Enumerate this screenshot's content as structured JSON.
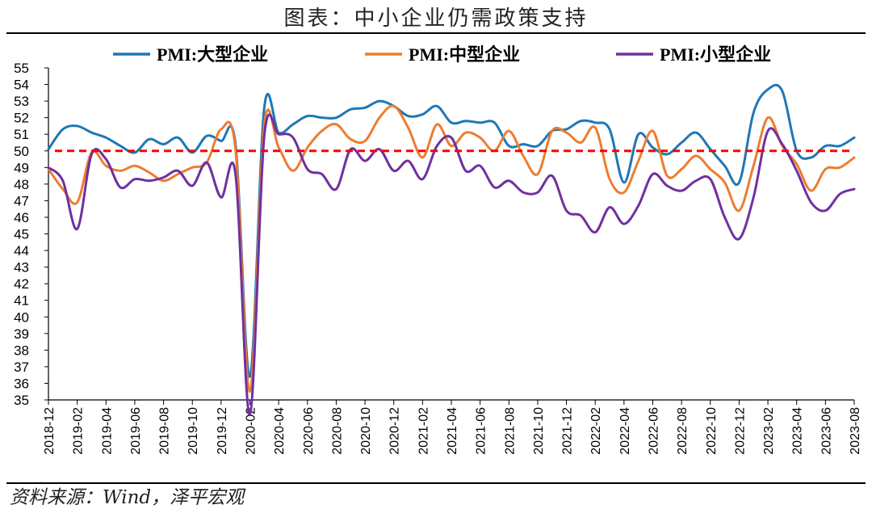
{
  "title": "图表：中小企业仍需政策支持",
  "source": "资料来源：Wind，泽平宏观",
  "chart_data": {
    "type": "line",
    "ylim": [
      35,
      55
    ],
    "yticks": [
      35,
      36,
      37,
      38,
      39,
      40,
      41,
      42,
      43,
      44,
      45,
      46,
      47,
      48,
      49,
      50,
      51,
      52,
      53,
      54,
      55
    ],
    "x": [
      "2018-12",
      "2019-01",
      "2019-02",
      "2019-03",
      "2019-04",
      "2019-05",
      "2019-06",
      "2019-07",
      "2019-08",
      "2019-09",
      "2019-10",
      "2019-11",
      "2019-12",
      "2020-01",
      "2020-02",
      "2020-03",
      "2020-04",
      "2020-05",
      "2020-06",
      "2020-07",
      "2020-08",
      "2020-09",
      "2020-10",
      "2020-11",
      "2020-12",
      "2021-01",
      "2021-02",
      "2021-03",
      "2021-04",
      "2021-05",
      "2021-06",
      "2021-07",
      "2021-08",
      "2021-09",
      "2021-10",
      "2021-11",
      "2021-12",
      "2022-01",
      "2022-02",
      "2022-03",
      "2022-04",
      "2022-05",
      "2022-06",
      "2022-07",
      "2022-08",
      "2022-09",
      "2022-10",
      "2022-11",
      "2022-12",
      "2023-01",
      "2023-02",
      "2023-03",
      "2023-04",
      "2023-05",
      "2023-06",
      "2023-07",
      "2023-08"
    ],
    "xticklabels": [
      "2018-12",
      "2019-02",
      "2019-04",
      "2019-06",
      "2019-08",
      "2019-10",
      "2019-12",
      "2020-02",
      "2020-04",
      "2020-06",
      "2020-08",
      "2020-10",
      "2020-12",
      "2021-02",
      "2021-04",
      "2021-06",
      "2021-08",
      "2021-10",
      "2021-12",
      "2022-02",
      "2022-04",
      "2022-06",
      "2022-08",
      "2022-10",
      "2022-12",
      "2023-02",
      "2023-04",
      "2023-06",
      "2023-08"
    ],
    "reference_line": {
      "value": 50,
      "color": "#ff0000",
      "style": "dashed"
    },
    "series": [
      {
        "name": "PMI:大型企业",
        "color": "#1f77b4",
        "values": [
          50.1,
          51.3,
          51.5,
          51.1,
          50.8,
          50.3,
          49.9,
          50.7,
          50.4,
          50.8,
          49.9,
          50.9,
          50.6,
          50.4,
          36.4,
          52.6,
          51.1,
          51.6,
          52.1,
          52.0,
          52.0,
          52.5,
          52.6,
          53.0,
          52.7,
          52.1,
          52.2,
          52.7,
          51.7,
          51.8,
          51.7,
          51.7,
          50.3,
          50.4,
          50.3,
          51.2,
          51.3,
          51.8,
          51.7,
          51.3,
          48.1,
          51.0,
          50.2,
          49.8,
          50.5,
          51.1,
          50.1,
          49.1,
          48.1,
          52.3,
          53.7,
          53.6,
          50.0,
          49.6,
          50.3,
          50.3,
          50.8
        ]
      },
      {
        "name": "PMI:中型企业",
        "color": "#ed7d31",
        "values": [
          48.9,
          47.7,
          46.9,
          49.9,
          49.1,
          48.8,
          49.1,
          48.7,
          48.2,
          48.6,
          49.0,
          49.3,
          51.3,
          50.1,
          35.5,
          51.6,
          50.2,
          48.8,
          50.2,
          51.2,
          51.6,
          50.7,
          50.6,
          52.0,
          52.7,
          51.4,
          49.6,
          51.6,
          50.3,
          51.1,
          50.8,
          50.0,
          51.2,
          49.7,
          48.6,
          51.2,
          51.1,
          50.5,
          51.4,
          48.3,
          47.5,
          49.4,
          51.2,
          48.5,
          48.9,
          49.7,
          48.9,
          48.1,
          46.4,
          49.1,
          52.0,
          50.3,
          49.2,
          47.6,
          48.9,
          49.0,
          49.6
        ]
      },
      {
        "name": "PMI:小型企业",
        "color": "#7030a0",
        "values": [
          49.0,
          48.2,
          45.3,
          49.8,
          49.5,
          47.8,
          48.3,
          48.2,
          48.4,
          48.8,
          47.9,
          49.3,
          47.2,
          48.6,
          34.1,
          50.9,
          51.0,
          50.8,
          48.9,
          48.6,
          47.7,
          50.1,
          49.4,
          50.1,
          48.8,
          49.4,
          48.3,
          50.3,
          50.8,
          48.8,
          49.1,
          47.8,
          48.2,
          47.5,
          47.5,
          48.5,
          46.4,
          46.1,
          45.1,
          46.6,
          45.6,
          46.7,
          48.6,
          47.9,
          47.6,
          48.2,
          48.3,
          46.0,
          44.7,
          47.2,
          51.2,
          50.4,
          48.8,
          46.9,
          46.4,
          47.4,
          47.7
        ]
      }
    ]
  }
}
